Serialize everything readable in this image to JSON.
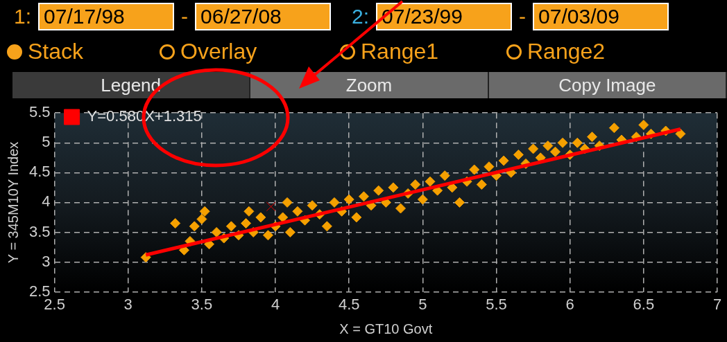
{
  "chart_data": {
    "type": "scatter",
    "xlabel": "X = GT10 Govt",
    "ylabel": "Y = 345M10Y Index",
    "xlim": [
      2.5,
      7
    ],
    "xticks": [
      2.5,
      3,
      3.5,
      4,
      4.5,
      5,
      5.5,
      6,
      6.5,
      7
    ],
    "ylim": [
      2.5,
      5.5
    ],
    "yticks": [
      2.5,
      3,
      3.5,
      4,
      4.5,
      5,
      5.5
    ],
    "grid": true,
    "legend": "top left",
    "marker": "diamond",
    "annotations": [
      "1:",
      "07/17/98",
      "-",
      "06/27/08",
      "2:",
      "07/23/99",
      "-",
      "07/03/09",
      "Stack",
      "Overlay",
      "Range1",
      "Range2",
      "Legend",
      "Zoom",
      "Copy Image"
    ],
    "series": [
      {
        "color": "#f5a000",
        "x": [
          3.12,
          3.32,
          3.38,
          3.42,
          3.45,
          3.5,
          3.52,
          3.55,
          3.6,
          3.65,
          3.7,
          3.75,
          3.8,
          3.82,
          3.85,
          3.9,
          3.95,
          4.0,
          4.05,
          4.08,
          4.1,
          4.15,
          4.2,
          4.25,
          4.3,
          4.35,
          4.4,
          4.45,
          4.5,
          4.55,
          4.6,
          4.65,
          4.7,
          4.75,
          4.8,
          4.85,
          4.9,
          4.95,
          5.0,
          5.05,
          5.1,
          5.15,
          5.2,
          5.25,
          5.3,
          5.35,
          5.4,
          5.45,
          5.5,
          5.55,
          5.6,
          5.65,
          5.7,
          5.75,
          5.8,
          5.85,
          5.9,
          5.95,
          6.0,
          6.05,
          6.1,
          6.15,
          6.2,
          6.3,
          6.35,
          6.45,
          6.5,
          6.55,
          6.65,
          6.75
        ],
        "values": [
          3.08,
          3.65,
          3.2,
          3.35,
          3.6,
          3.72,
          3.85,
          3.3,
          3.5,
          3.4,
          3.6,
          3.45,
          3.65,
          3.85,
          3.5,
          3.75,
          3.45,
          3.6,
          3.75,
          4.0,
          3.5,
          3.85,
          3.7,
          3.95,
          3.8,
          3.6,
          4.0,
          3.85,
          4.05,
          3.75,
          4.1,
          3.95,
          4.2,
          4.0,
          4.25,
          3.9,
          4.15,
          4.3,
          4.05,
          4.35,
          4.2,
          4.45,
          4.25,
          4.0,
          4.35,
          4.55,
          4.3,
          4.6,
          4.45,
          4.7,
          4.5,
          4.8,
          4.65,
          4.9,
          4.75,
          4.95,
          4.85,
          5.0,
          4.8,
          5.0,
          4.9,
          5.1,
          4.95,
          5.25,
          5.05,
          5.1,
          5.3,
          5.15,
          5.2,
          5.15
        ]
      },
      {
        "color": "#e00000",
        "marker": "cross",
        "x": [
          3.97
        ],
        "values": [
          3.93
        ]
      },
      {
        "type": "line",
        "name": "Y=0.580X+1.315",
        "color": "#ff0000",
        "marker": "none",
        "x": [
          3.12,
          6.75
        ],
        "values": [
          3.12,
          5.23
        ]
      }
    ]
  }
}
